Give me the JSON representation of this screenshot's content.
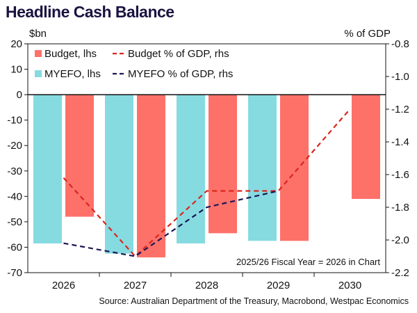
{
  "title": "Headline Cash Balance",
  "left_unit": "$bn",
  "right_unit": "% of GDP",
  "note": "2025/26 Fiscal Year = 2026 in Chart",
  "source": "Source: Australian Department of the Treasury, Macrobond, Westpac Economics",
  "colors": {
    "budget_bar": "#fd7169",
    "myefo_bar": "#86dbe1",
    "budget_line": "#d9261c",
    "myefo_line": "#1b1657"
  },
  "chart_data": {
    "type": "bar",
    "categories": [
      "2026",
      "2027",
      "2028",
      "2029",
      "2030"
    ],
    "series": [
      {
        "name": "MYEFO, lhs",
        "axis": "left",
        "kind": "bar",
        "values": [
          -58.5,
          -62.5,
          -58.5,
          -57.5,
          null
        ]
      },
      {
        "name": "Budget, lhs",
        "axis": "left",
        "kind": "bar",
        "values": [
          -48,
          -64,
          -54.5,
          -57.5,
          -41
        ]
      },
      {
        "name": "Budget % of GDP, rhs",
        "axis": "right",
        "kind": "line",
        "style": "dashed",
        "values": [
          -1.62,
          -2.1,
          -1.7,
          -1.7,
          -1.2
        ]
      },
      {
        "name": "MYEFO % of GDP, rhs",
        "axis": "right",
        "kind": "line",
        "style": "dashed",
        "values": [
          -2.02,
          -2.1,
          -1.8,
          -1.7,
          null
        ]
      }
    ],
    "legend_order": [
      "Budget, lhs",
      "Budget % of GDP, rhs",
      "MYEFO, lhs",
      "MYEFO % of GDP, rhs"
    ],
    "left_axis": {
      "min": -70,
      "max": 20,
      "ticks": [
        "20",
        "10",
        "0",
        "-10",
        "-20",
        "-30",
        "-40",
        "-50",
        "-60",
        "-70"
      ]
    },
    "right_axis": {
      "min": -2.2,
      "max": -0.8,
      "ticks": [
        "-0.8",
        "-1.0",
        "-1.2",
        "-1.4",
        "-1.6",
        "-1.8",
        "-2.0",
        "-2.2"
      ]
    },
    "legend_position": "top-left",
    "grid": false
  }
}
